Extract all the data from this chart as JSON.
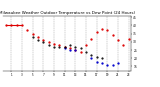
{
  "title": "Milwaukee Weather Outdoor Temperature vs Dew Point (24 Hours)",
  "title_fontsize": 3.0,
  "background_color": "#ffffff",
  "grid_color": "#999999",
  "temp_data": [
    [
      0,
      40
    ],
    [
      1,
      40
    ],
    [
      2,
      40
    ],
    [
      3,
      40
    ],
    [
      4,
      37
    ],
    [
      5,
      35
    ],
    [
      6,
      33
    ],
    [
      7,
      31
    ],
    [
      8,
      30
    ],
    [
      9,
      29
    ],
    [
      10,
      28
    ],
    [
      11,
      27
    ],
    [
      12,
      26
    ],
    [
      13,
      25
    ],
    [
      14,
      24
    ],
    [
      15,
      28
    ],
    [
      16,
      32
    ],
    [
      17,
      36
    ],
    [
      18,
      38
    ],
    [
      19,
      37
    ],
    [
      20,
      34
    ],
    [
      21,
      31
    ],
    [
      22,
      28
    ],
    [
      23,
      32
    ]
  ],
  "dew_data": [
    [
      11,
      26
    ],
    [
      12,
      25
    ],
    [
      13,
      25
    ],
    [
      16,
      20
    ],
    [
      17,
      18
    ],
    [
      18,
      17
    ],
    [
      19,
      16
    ],
    [
      20,
      16
    ],
    [
      21,
      17
    ]
  ],
  "black_data": [
    [
      5,
      33
    ],
    [
      6,
      31
    ],
    [
      7,
      30
    ],
    [
      8,
      28
    ],
    [
      9,
      27
    ],
    [
      10,
      27
    ],
    [
      11,
      27
    ],
    [
      12,
      28
    ],
    [
      13,
      27
    ],
    [
      14,
      26
    ],
    [
      15,
      24
    ],
    [
      16,
      22
    ],
    [
      17,
      21
    ],
    [
      18,
      20
    ]
  ],
  "red_line_x": [
    0,
    3
  ],
  "red_line_y": [
    40,
    40
  ],
  "temp_color": "#dd0000",
  "dew_color": "#0000cc",
  "black_color": "#000000",
  "ylim": [
    12,
    46
  ],
  "yticks": [
    15,
    20,
    25,
    30,
    35,
    40,
    45
  ],
  "ytick_labels": [
    "15",
    "20",
    "25",
    "30",
    "35",
    "40",
    "45"
  ],
  "xlim": [
    -0.5,
    23.5
  ],
  "xticks": [
    1,
    3,
    5,
    7,
    9,
    11,
    13,
    15,
    17,
    19,
    21,
    23
  ],
  "vgrid_positions": [
    1,
    3,
    5,
    7,
    9,
    11,
    13,
    15,
    17,
    19,
    21,
    23
  ]
}
